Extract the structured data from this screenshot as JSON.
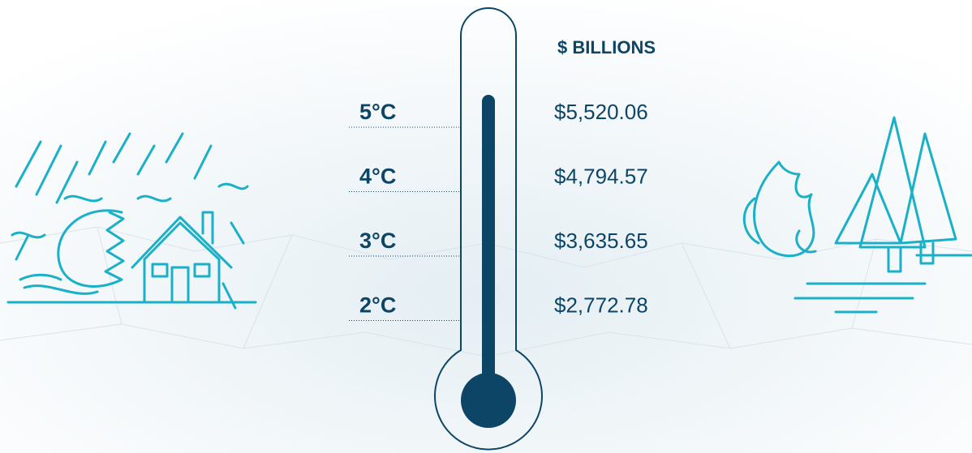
{
  "header": "$ BILLIONS",
  "rows": [
    {
      "temperature": "5°C",
      "value": "$5,520.06"
    },
    {
      "temperature": "4°C",
      "value": "$4,794.57"
    },
    {
      "temperature": "3°C",
      "value": "$3,635.65"
    },
    {
      "temperature": "2°C",
      "value": "$2,772.78"
    }
  ]
}
